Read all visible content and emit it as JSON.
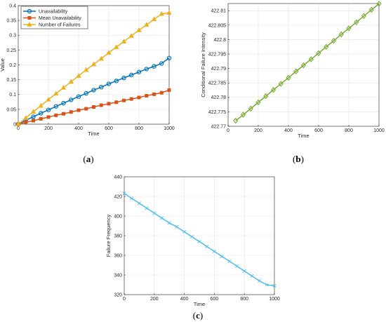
{
  "panels": [
    {
      "caption": "(a)",
      "type": "line",
      "xlabel": "Time",
      "ylabel": "Value",
      "xlim": [
        0,
        1000
      ],
      "ylim": [
        0,
        0.4
      ],
      "xticks": [
        0,
        200,
        400,
        600,
        800,
        1000
      ],
      "yticks": [
        0,
        0.05,
        0.1,
        0.15,
        0.2,
        0.25,
        0.3,
        0.35,
        0.4
      ],
      "ytick_labels": [
        "0",
        "0.05",
        "0.1",
        "0.15",
        "0.2",
        "0.25",
        "0.3",
        "0.35",
        "0.4"
      ],
      "grid": true,
      "legend_position": "top-left",
      "series": [
        {
          "name": "Unavailability",
          "color": "#0072bd",
          "marker": "circle",
          "x": [
            0,
            50,
            100,
            150,
            200,
            250,
            300,
            350,
            400,
            450,
            500,
            550,
            600,
            650,
            700,
            750,
            800,
            850,
            900,
            950,
            1000
          ],
          "y": [
            0,
            0.013,
            0.025,
            0.037,
            0.048,
            0.06,
            0.071,
            0.082,
            0.093,
            0.104,
            0.115,
            0.125,
            0.136,
            0.146,
            0.156,
            0.166,
            0.176,
            0.186,
            0.195,
            0.205,
            0.223
          ]
        },
        {
          "name": "Mean Unavailability",
          "color": "#d95319",
          "marker": "square",
          "x": [
            0,
            50,
            100,
            150,
            200,
            250,
            300,
            350,
            400,
            450,
            500,
            550,
            600,
            650,
            700,
            750,
            800,
            850,
            900,
            950,
            1000
          ],
          "y": [
            0,
            0.006,
            0.012,
            0.018,
            0.024,
            0.03,
            0.035,
            0.041,
            0.047,
            0.052,
            0.058,
            0.064,
            0.069,
            0.074,
            0.08,
            0.085,
            0.09,
            0.096,
            0.101,
            0.106,
            0.115
          ]
        },
        {
          "name": "Number of Failures",
          "color": "#edb120",
          "marker": "triangle",
          "x": [
            0,
            50,
            100,
            150,
            200,
            250,
            300,
            350,
            400,
            450,
            500,
            550,
            600,
            650,
            700,
            750,
            800,
            850,
            900,
            950,
            1000
          ],
          "y": [
            0,
            0.021,
            0.042,
            0.062,
            0.083,
            0.103,
            0.123,
            0.143,
            0.163,
            0.183,
            0.202,
            0.221,
            0.241,
            0.26,
            0.279,
            0.298,
            0.317,
            0.335,
            0.354,
            0.372,
            0.376
          ]
        }
      ]
    },
    {
      "caption": "(b)",
      "type": "line",
      "xlabel": "Time",
      "ylabel": "Conditional Failure Intensity",
      "xlim": [
        0,
        1000
      ],
      "ylim": [
        422.77,
        422.8125
      ],
      "xticks": [
        0,
        200,
        400,
        600,
        800,
        1000
      ],
      "yticks": [
        422.77,
        422.775,
        422.78,
        422.785,
        422.79,
        422.795,
        422.8,
        422.805,
        422.81
      ],
      "ytick_labels": [
        "422.77",
        "422.775",
        "422.78",
        "422.785",
        "422.79",
        "422.795",
        "422.8",
        "422.805",
        "422.81"
      ],
      "grid": true,
      "series": [
        {
          "color": "#77ac30",
          "marker": "diamond",
          "x": [
            50,
            100,
            150,
            200,
            250,
            300,
            350,
            400,
            450,
            500,
            550,
            600,
            650,
            700,
            750,
            800,
            850,
            900,
            950,
            1000
          ],
          "y": [
            422.7719,
            422.774,
            422.7761,
            422.7783,
            422.7804,
            422.7826,
            422.7847,
            422.7868,
            422.789,
            422.7911,
            422.7932,
            422.7953,
            422.7975,
            422.7996,
            422.8018,
            422.8039,
            422.806,
            422.8082,
            422.8103,
            422.8124
          ]
        }
      ]
    },
    {
      "caption": "(c)",
      "type": "line",
      "xlabel": "Time",
      "ylabel": "Failure Frequency",
      "xlim": [
        0,
        1000
      ],
      "ylim": [
        320,
        440
      ],
      "xticks": [
        0,
        200,
        400,
        600,
        800,
        1000
      ],
      "yticks": [
        320,
        340,
        360,
        380,
        400,
        420,
        440
      ],
      "ytick_labels": [
        "320",
        "340",
        "360",
        "380",
        "400",
        "420",
        "440"
      ],
      "grid": true,
      "series": [
        {
          "color": "#4dbeee",
          "marker": "x",
          "x": [
            0,
            50,
            100,
            150,
            200,
            250,
            300,
            350,
            400,
            450,
            500,
            550,
            600,
            650,
            700,
            750,
            800,
            850,
            900,
            950,
            1000
          ],
          "y": [
            423,
            418,
            413,
            408,
            403,
            398,
            393,
            389,
            384,
            379,
            374,
            369,
            364,
            359,
            354,
            349,
            344,
            339,
            334,
            330,
            329
          ]
        }
      ]
    }
  ]
}
